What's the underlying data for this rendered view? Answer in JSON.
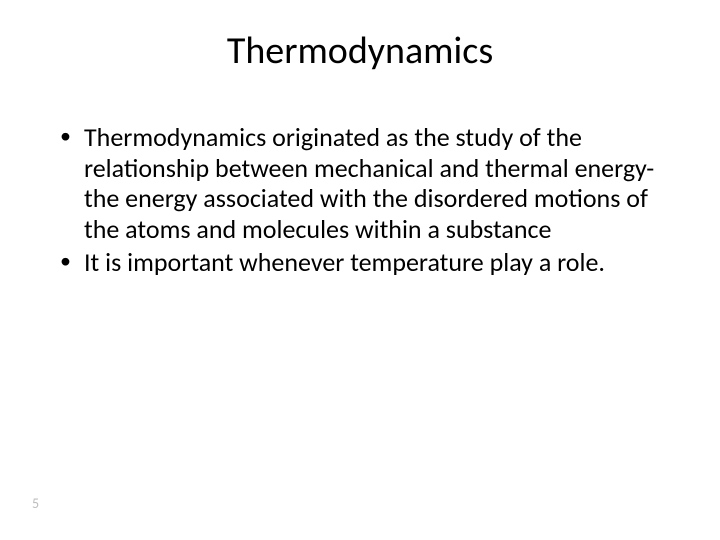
{
  "slide": {
    "title": "Thermodynamics",
    "bullets": [
      "Thermodynamics originated as the study of the relationship between mechanical and thermal energy- the energy associated with the disordered motions of the atoms and molecules within a substance",
      "It is important whenever temperature play a role."
    ],
    "page_number": "5"
  },
  "style": {
    "background_color": "#ffffff",
    "text_color": "#000000",
    "title_fontsize_pt": 38,
    "body_fontsize_pt": 26,
    "page_number_color": "#bdbdbd",
    "page_number_fontsize_pt": 14,
    "font_family": "Calibri"
  }
}
